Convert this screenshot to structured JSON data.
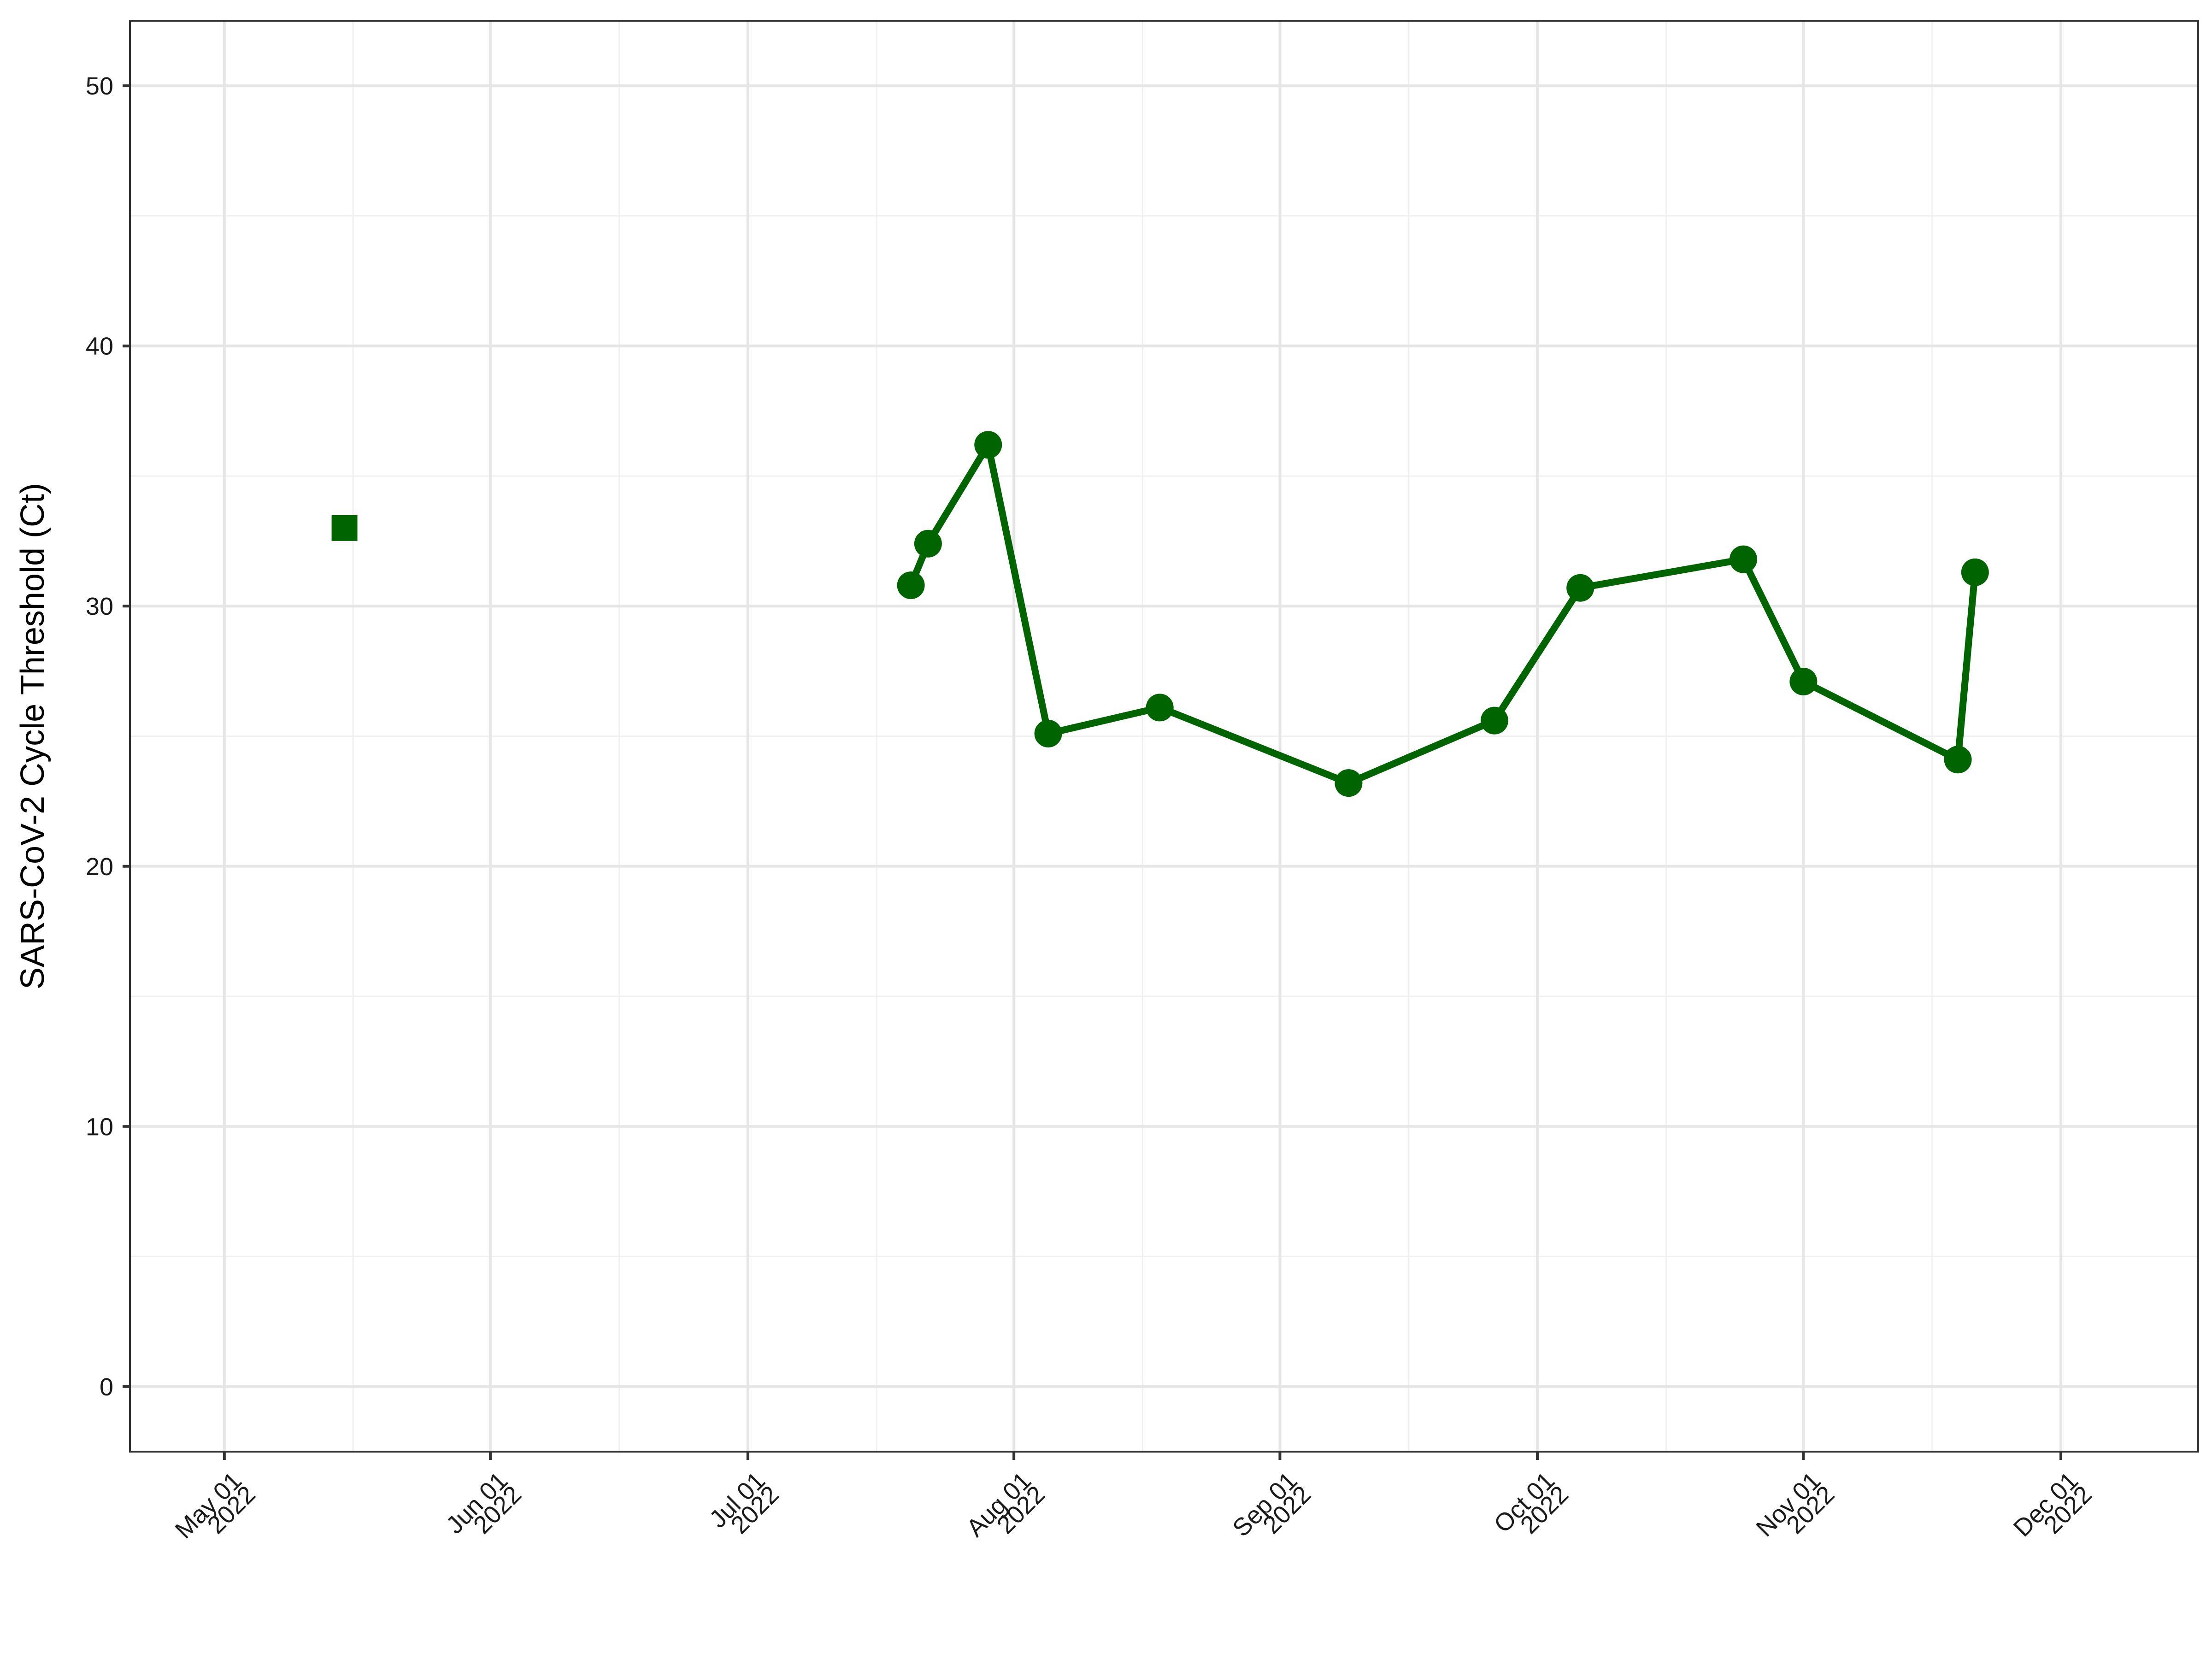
{
  "chart_data": {
    "type": "line",
    "title": "",
    "xlabel": "",
    "ylabel": "SARS-CoV-2 Cycle Threshold (Ct)",
    "x_axis_type": "date",
    "xlim": [
      "2022-04-20",
      "2022-12-17"
    ],
    "ylim": [
      -2.5,
      52.5
    ],
    "y_ticks": [
      0,
      10,
      20,
      30,
      40,
      50
    ],
    "y_minor_ticks": [
      5,
      15,
      25,
      35,
      45
    ],
    "x_ticks": [
      {
        "date": "2022-05-01",
        "line1": "May 01",
        "line2": "2022"
      },
      {
        "date": "2022-06-01",
        "line1": "Jun 01",
        "line2": "2022"
      },
      {
        "date": "2022-07-01",
        "line1": "Jul 01",
        "line2": "2022"
      },
      {
        "date": "2022-08-01",
        "line1": "Aug 01",
        "line2": "2022"
      },
      {
        "date": "2022-09-01",
        "line1": "Sep 01",
        "line2": "2022"
      },
      {
        "date": "2022-10-01",
        "line1": "Oct 01",
        "line2": "2022"
      },
      {
        "date": "2022-11-01",
        "line1": "Nov 01",
        "line2": "2022"
      },
      {
        "date": "2022-12-01",
        "line1": "Dec 01",
        "line2": "2022"
      }
    ],
    "x_minor_ticks": [
      "2022-05-16",
      "2022-06-16",
      "2022-07-16",
      "2022-08-16",
      "2022-09-16",
      "2022-10-16",
      "2022-11-16"
    ],
    "grid": true,
    "legend": "none",
    "series": [
      {
        "marker": "circle",
        "connected": true,
        "color": "#006400",
        "points": [
          {
            "x": "2022-07-20",
            "y": 30.8
          },
          {
            "x": "2022-07-22",
            "y": 32.4
          },
          {
            "x": "2022-07-29",
            "y": 36.2
          },
          {
            "x": "2022-08-05",
            "y": 25.1
          },
          {
            "x": "2022-08-18",
            "y": 26.1
          },
          {
            "x": "2022-09-09",
            "y": 23.2
          },
          {
            "x": "2022-09-26",
            "y": 25.6
          },
          {
            "x": "2022-10-06",
            "y": 30.7
          },
          {
            "x": "2022-10-25",
            "y": 31.8
          },
          {
            "x": "2022-11-01",
            "y": 27.1
          },
          {
            "x": "2022-11-19",
            "y": 24.1
          },
          {
            "x": "2022-11-21",
            "y": 31.3
          }
        ]
      },
      {
        "marker": "square",
        "connected": false,
        "color": "#006400",
        "points": [
          {
            "x": "2022-05-15",
            "y": 33.0
          }
        ]
      }
    ]
  }
}
